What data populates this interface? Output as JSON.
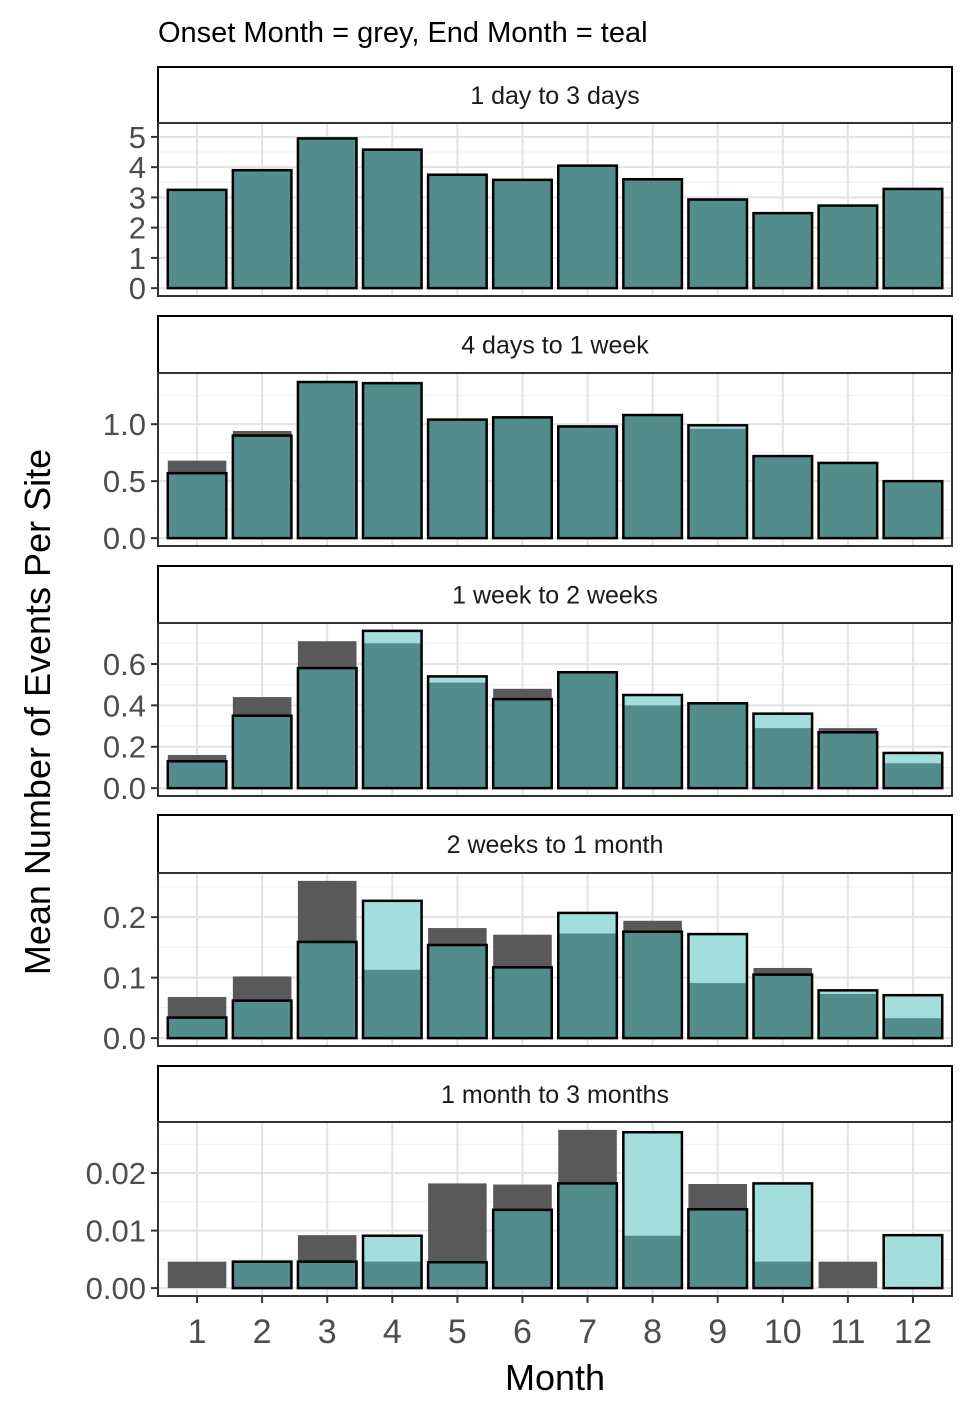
{
  "chart_data": {
    "type": "bar",
    "subtitle": "Onset Month = grey, End Month = teal",
    "xlabel": "Month",
    "ylabel": "Mean Number of Events Per Site",
    "categories": [
      "1",
      "2",
      "3",
      "4",
      "5",
      "6",
      "7",
      "8",
      "9",
      "10",
      "11",
      "12"
    ],
    "colors": {
      "onset": "#595959",
      "end": "#a3dedd",
      "overlap": "#528c8b",
      "outline": "#000000"
    },
    "grid": true,
    "legend": "none",
    "panels": [
      {
        "label": "1 day to 3 days",
        "ylim": [
          0,
          5.2
        ],
        "yticks": [
          "0",
          "1",
          "2",
          "3",
          "4",
          "5"
        ],
        "ytick_values": [
          0,
          1,
          2,
          3,
          4,
          5
        ],
        "series": [
          {
            "values": [
              3.25,
              3.92,
              4.95,
              4.58,
              3.75,
              3.58,
              4.05,
              3.6,
              2.93,
              2.48,
              2.73,
              3.28
            ]
          },
          {
            "values": [
              3.25,
              3.9,
              4.95,
              4.58,
              3.75,
              3.58,
              4.05,
              3.6,
              2.93,
              2.48,
              2.73,
              3.28
            ]
          }
        ]
      },
      {
        "label": "4 days to 1 week",
        "ylim": [
          0,
          1.38
        ],
        "yticks": [
          "0.0",
          "0.5",
          "1.0"
        ],
        "ytick_values": [
          0,
          0.5,
          1.0
        ],
        "series": [
          {
            "values": [
              0.68,
              0.94,
              1.37,
              1.37,
              1.03,
              1.06,
              0.99,
              1.09,
              0.96,
              0.71,
              0.66,
              0.49
            ]
          },
          {
            "values": [
              0.57,
              0.9,
              1.37,
              1.36,
              1.04,
              1.06,
              0.98,
              1.08,
              0.99,
              0.72,
              0.66,
              0.5
            ]
          }
        ]
      },
      {
        "label": "1 week to 2 weeks",
        "ylim": [
          0,
          0.76
        ],
        "yticks": [
          "0.0",
          "0.2",
          "0.4",
          "0.6"
        ],
        "ytick_values": [
          0,
          0.2,
          0.4,
          0.6
        ],
        "series": [
          {
            "values": [
              0.16,
              0.44,
              0.71,
              0.7,
              0.51,
              0.48,
              0.56,
              0.4,
              0.41,
              0.29,
              0.29,
              0.12
            ]
          },
          {
            "values": [
              0.13,
              0.35,
              0.58,
              0.76,
              0.54,
              0.43,
              0.56,
              0.45,
              0.41,
              0.36,
              0.27,
              0.17
            ]
          }
        ]
      },
      {
        "label": "2 weeks to 1 month",
        "ylim": [
          0,
          0.26
        ],
        "yticks": [
          "0.0",
          "0.1",
          "0.2"
        ],
        "ytick_values": [
          0,
          0.1,
          0.2
        ],
        "series": [
          {
            "values": [
              0.068,
              0.102,
              0.26,
              0.113,
              0.182,
              0.171,
              0.173,
              0.194,
              0.091,
              0.116,
              0.073,
              0.033
            ]
          },
          {
            "values": [
              0.034,
              0.062,
              0.159,
              0.227,
              0.154,
              0.117,
              0.207,
              0.176,
              0.172,
              0.105,
              0.079,
              0.071
            ]
          }
        ]
      },
      {
        "label": "1 month to 3 months",
        "ylim": [
          0,
          0.0275
        ],
        "yticks": [
          "0.00",
          "0.01",
          "0.02"
        ],
        "ytick_values": [
          0,
          0.01,
          0.02
        ],
        "series": [
          {
            "values": [
              0.0046,
              0.0046,
              0.0092,
              0.0046,
              0.0182,
              0.018,
              0.0275,
              0.0091,
              0.0181,
              0.0046,
              0.0046,
              0.0
            ]
          },
          {
            "values": [
              0.0,
              0.0046,
              0.0046,
              0.0091,
              0.0045,
              0.0136,
              0.0182,
              0.0271,
              0.0137,
              0.0182,
              0.0,
              0.0092
            ]
          }
        ]
      }
    ]
  }
}
